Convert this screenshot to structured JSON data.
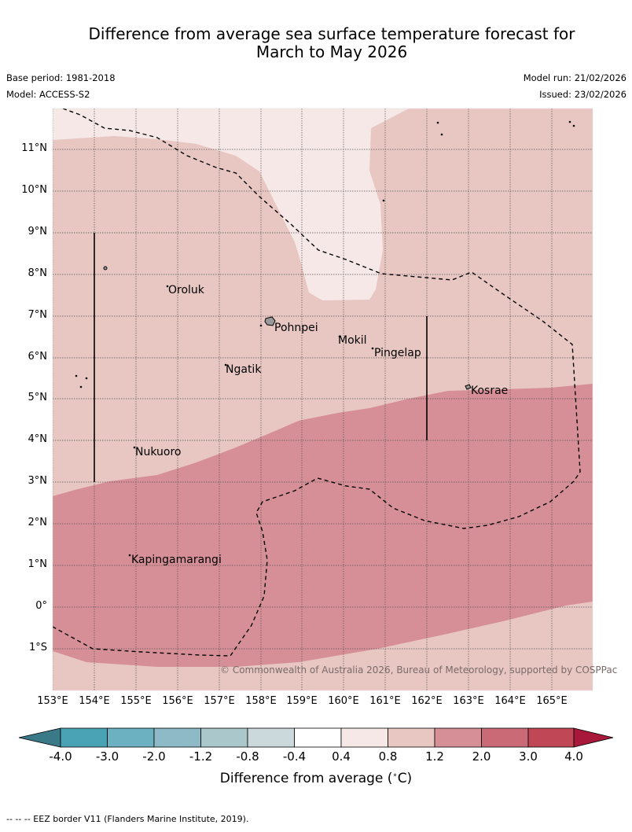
{
  "title_line1": "Difference from average sea surface temperature forecast for",
  "title_line2": "March to May 2026",
  "base_period": "Base period: 1981-2018",
  "model": "Model: ACCESS-S2",
  "model_run": "Model run: 21/02/2026",
  "issued": "Issued: 23/02/2026",
  "copyright": "© Commonwealth of Australia 2026, Bureau of Meteorology, supported by COSPPac",
  "locations": {
    "oroluk": "Oroluk",
    "pohnpei": "Pohnpei",
    "mokil": "Mokil",
    "pingelap": "Pingelap",
    "ngatik": "Ngatik",
    "kosrae": "Kosrae",
    "nukuoro": "Nukuoro",
    "kapingamarangi": "Kapingamarangi"
  },
  "lat_labels": [
    "11°N",
    "10°N",
    "9°N",
    "8°N",
    "7°N",
    "6°N",
    "5°N",
    "4°N",
    "3°N",
    "2°N",
    "1°N",
    "0°",
    "1°S"
  ],
  "lon_labels": [
    "153°E",
    "154°E",
    "155°E",
    "156°E",
    "157°E",
    "158°E",
    "159°E",
    "160°E",
    "161°E",
    "162°E",
    "163°E",
    "164°E",
    "165°E"
  ],
  "colorbar": {
    "ticks": [
      "-4.0",
      "-3.0",
      "-2.0",
      "-1.2",
      "-0.8",
      "-0.4",
      "0.4",
      "0.8",
      "1.2",
      "2.0",
      "3.0",
      "4.0"
    ],
    "colors": [
      "#3a7a88",
      "#4aa3b4",
      "#6cb1c1",
      "#8dbac6",
      "#aac8cc",
      "#cbd9dd",
      "#ffffff",
      "#f5e8e7",
      "#e8c7c2",
      "#d68f96",
      "#c96a76",
      "#bf4756",
      "#a8183a"
    ],
    "label": "Difference from average (",
    "unit": "C)"
  },
  "footer": "-- -- -- EEZ border V11 (Flanders Marine Institute, 2019)."
}
